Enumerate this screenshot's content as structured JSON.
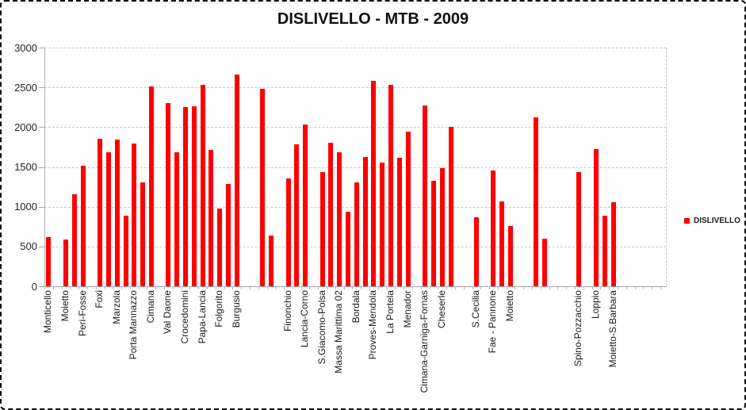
{
  "title": "DISLIVELLO - MTB - 2009",
  "legend": {
    "label": "DISLIVELLO",
    "marker_color": "#ff0000"
  },
  "colors": {
    "bar": "#ff0000",
    "gridline": "#c9c9c9",
    "axis": "#a6a6a6",
    "text": "#1a1a1a",
    "background": "#ffffff",
    "border": "#000000"
  },
  "chart_data": {
    "type": "bar",
    "title": "DISLIVELLO - MTB - 2009",
    "xlabel": "",
    "ylabel": "",
    "ylim": [
      0,
      3000
    ],
    "yticks": [
      0,
      500,
      1000,
      1500,
      2000,
      2500,
      3000
    ],
    "grid": "horizontal-dashed",
    "legend_position": "right",
    "series_name": "DISLIVELLO",
    "bar_color": "#ff0000",
    "num_slots": 73,
    "label_interval": 2,
    "bars": [
      {
        "slot": 0,
        "label": "Monticello",
        "value": 620
      },
      {
        "slot": 2,
        "label": "Moietto",
        "value": 590
      },
      {
        "slot": 3,
        "value": 1160
      },
      {
        "slot": 4,
        "label": "Peri-Fosse",
        "value": 1510
      },
      {
        "slot": 6,
        "label": "Foxi",
        "value": 1850
      },
      {
        "slot": 7,
        "value": 1680
      },
      {
        "slot": 8,
        "label": "Marzola",
        "value": 1840
      },
      {
        "slot": 9,
        "value": 890
      },
      {
        "slot": 10,
        "label": "Porta Mannazzo",
        "value": 1790
      },
      {
        "slot": 11,
        "value": 1310
      },
      {
        "slot": 12,
        "label": "Cimana",
        "value": 2510
      },
      {
        "slot": 14,
        "label": "Val Daone",
        "value": 2300
      },
      {
        "slot": 15,
        "value": 1680
      },
      {
        "slot": 16,
        "label": "Crocedomini",
        "value": 2250
      },
      {
        "slot": 17,
        "value": 2260
      },
      {
        "slot": 18,
        "label": "Papa-Lancia",
        "value": 2530
      },
      {
        "slot": 19,
        "value": 1710
      },
      {
        "slot": 20,
        "label": "Folgorito",
        "value": 980
      },
      {
        "slot": 21,
        "value": 1290
      },
      {
        "slot": 22,
        "label": "Burgusio",
        "value": 2660
      },
      {
        "slot": 25,
        "value": 2480
      },
      {
        "slot": 26,
        "value": 640
      },
      {
        "slot": 28,
        "label": "Finonchio",
        "value": 1360
      },
      {
        "slot": 29,
        "value": 1780
      },
      {
        "slot": 30,
        "label": "Lancia-Corno",
        "value": 2030
      },
      {
        "slot": 32,
        "label": "S.Giacomo-Polsa",
        "value": 1440
      },
      {
        "slot": 33,
        "value": 1800
      },
      {
        "slot": 34,
        "label": "Massa Marittima 02",
        "value": 1680
      },
      {
        "slot": 35,
        "value": 940
      },
      {
        "slot": 36,
        "label": "Bordala",
        "value": 1310
      },
      {
        "slot": 37,
        "value": 1620
      },
      {
        "slot": 38,
        "label": "Proves-Mendola",
        "value": 2580
      },
      {
        "slot": 39,
        "value": 1550
      },
      {
        "slot": 40,
        "label": "La Portela",
        "value": 2530
      },
      {
        "slot": 41,
        "value": 1610
      },
      {
        "slot": 42,
        "label": "Menador",
        "value": 1940
      },
      {
        "slot": 44,
        "label": "Cimana-Garniga-Fornas",
        "value": 2270
      },
      {
        "slot": 45,
        "value": 1330
      },
      {
        "slot": 46,
        "label": "Cheserle",
        "value": 1490
      },
      {
        "slot": 47,
        "value": 2000
      },
      {
        "slot": 50,
        "label": "S.Cecilia",
        "value": 870
      },
      {
        "slot": 52,
        "label": "Fae - Pannone",
        "value": 1460
      },
      {
        "slot": 53,
        "value": 1070
      },
      {
        "slot": 54,
        "label": "Moietto",
        "value": 760
      },
      {
        "slot": 57,
        "value": 2120
      },
      {
        "slot": 58,
        "value": 600
      },
      {
        "slot": 62,
        "label": "Spino-Pozzacchio",
        "value": 1440
      },
      {
        "slot": 64,
        "label": "Loppio",
        "value": 1720
      },
      {
        "slot": 65,
        "value": 890
      },
      {
        "slot": 66,
        "label": "Moietto-S.Barbara",
        "value": 1060
      }
    ]
  }
}
